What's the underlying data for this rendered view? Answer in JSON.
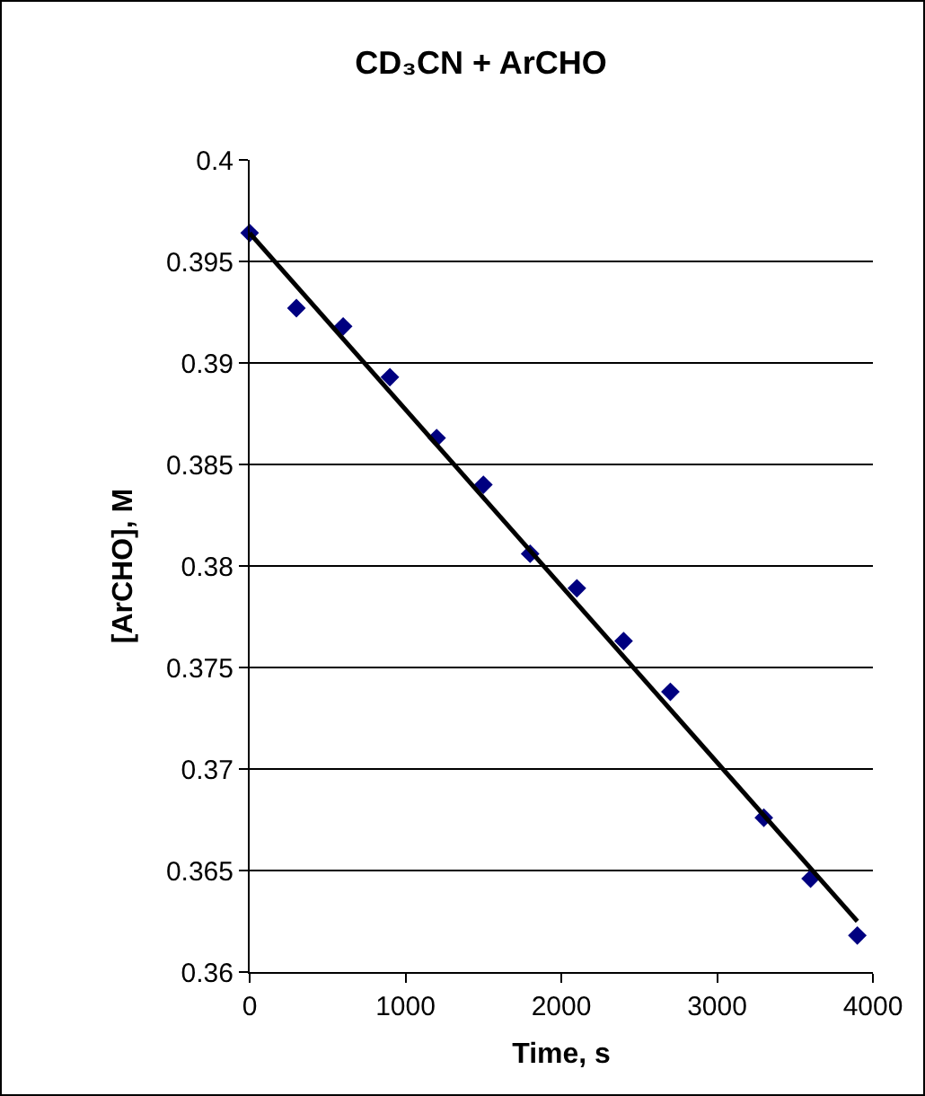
{
  "chart_data": {
    "type": "scatter",
    "title": "CD₃CN + ArCHO",
    "xlabel": "Time, s",
    "ylabel": "[ArCHO], M",
    "x": [
      0,
      300,
      600,
      900,
      1200,
      1500,
      1800,
      2100,
      2400,
      2700,
      3300,
      3600,
      3900
    ],
    "series": [
      {
        "color": "#000080",
        "marker": "diamond",
        "values": [
          0.3964,
          0.3927,
          0.3918,
          0.3893,
          0.3863,
          0.384,
          0.3806,
          0.3789,
          0.3763,
          0.3738,
          0.3676,
          0.3646,
          0.3618
        ]
      },
      {
        "type": "line",
        "color": "#000000",
        "x": [
          0,
          3900
        ],
        "values": [
          0.3964,
          0.3625
        ]
      }
    ],
    "xlim": [
      0,
      4000
    ],
    "xticks": [
      0,
      1000,
      2000,
      3000,
      4000
    ],
    "ylim": [
      0.36,
      0.4
    ],
    "yticks": [
      0.36,
      0.365,
      0.37,
      0.375,
      0.38,
      0.385,
      0.39,
      0.395,
      0.4
    ],
    "grid": "y"
  }
}
